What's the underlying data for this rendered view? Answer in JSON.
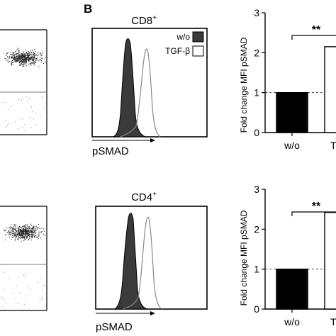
{
  "panel_label": "B",
  "chart_data": [
    {
      "type": "scatter",
      "panel": "A-top",
      "title": "",
      "series": [
        {
          "values_note": ""
        }
      ],
      "gate_lines": true
    },
    {
      "type": "area",
      "panel": "B-top-histogram",
      "title": "CD8",
      "title_sup": "+",
      "xlabel": "pSMAD",
      "legend": [
        {
          "name": "w/o",
          "fill": "#3a3a3a"
        },
        {
          "name": "TGF-β",
          "fill": "#ffffff"
        }
      ],
      "legend_position": "top-right"
    },
    {
      "type": "bar",
      "panel": "B-top-bar",
      "categories": [
        "w/o",
        "TGF"
      ],
      "values": [
        1.0,
        2.15
      ],
      "errors": [
        0,
        0.2
      ],
      "ylabel": "Fold change MFI pSMAD",
      "ylim": [
        0,
        3
      ],
      "yticks": [
        "0",
        "1",
        "2",
        "3"
      ],
      "reference_line": 1,
      "significance": "**",
      "colors": [
        "#000000",
        "#ffffff"
      ]
    },
    {
      "type": "scatter",
      "panel": "A-bottom",
      "title": "",
      "gate_lines": true
    },
    {
      "type": "area",
      "panel": "B-bottom-histogram",
      "title": "CD4",
      "title_sup": "+",
      "xlabel": "pSMAD"
    },
    {
      "type": "bar",
      "panel": "B-bottom-bar",
      "categories": [
        "w/o",
        "TGF"
      ],
      "values": [
        1.0,
        2.42
      ],
      "errors": [
        0,
        0.25
      ],
      "ylabel": "Fold change MFI pSMAD",
      "ylim": [
        0,
        3
      ],
      "yticks": [
        "0",
        "1",
        "2",
        "3"
      ],
      "reference_line": 1,
      "significance": "**",
      "colors": [
        "#000000",
        "#ffffff"
      ]
    }
  ]
}
